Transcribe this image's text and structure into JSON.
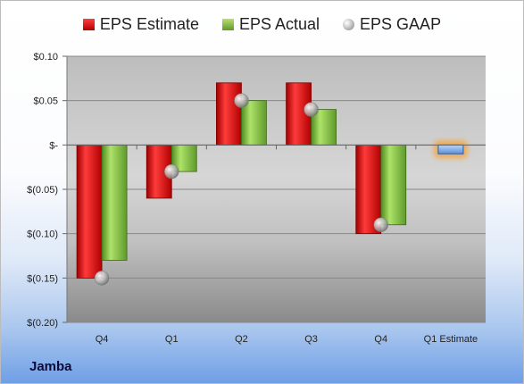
{
  "company": "Jamba",
  "colors": {
    "estimate": "#e02020",
    "actual": "#8cbf4a",
    "gaap": "#b0b0b0",
    "estimate_future": "#7eaee6"
  },
  "chart_data": {
    "type": "bar",
    "categories": [
      "Q4",
      "Q1",
      "Q2",
      "Q3",
      "Q4",
      "Q1 Estimate"
    ],
    "series": [
      {
        "name": "EPS Estimate",
        "values": [
          -0.15,
          -0.06,
          0.07,
          0.07,
          -0.1,
          -0.01
        ]
      },
      {
        "name": "EPS Actual",
        "values": [
          -0.13,
          -0.03,
          0.05,
          0.04,
          -0.09,
          null
        ]
      },
      {
        "name": "EPS GAAP",
        "values": [
          -0.15,
          -0.03,
          0.05,
          0.04,
          -0.09,
          null
        ]
      }
    ],
    "ylim": [
      -0.2,
      0.1
    ],
    "yticks": [
      0.1,
      0.05,
      0.0,
      -0.05,
      -0.1,
      -0.15,
      -0.2
    ],
    "ytick_labels": [
      "$0.10",
      "$0.05",
      "$-",
      "$(0.05)",
      "$(0.10)",
      "$(0.15)",
      "$(0.20)"
    ],
    "grid": true,
    "legend": "top"
  }
}
